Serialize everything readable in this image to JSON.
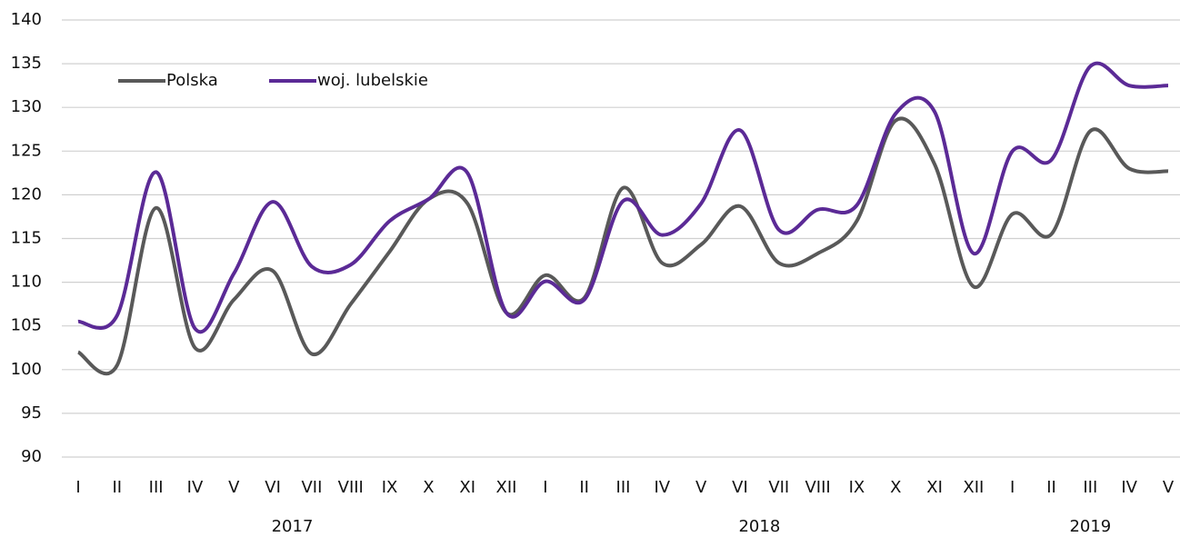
{
  "chart_data": {
    "type": "line",
    "categories": [
      "I",
      "II",
      "III",
      "IV",
      "V",
      "VI",
      "VII",
      "VIII",
      "IX",
      "X",
      "XI",
      "XII",
      "I",
      "II",
      "III",
      "IV",
      "V",
      "VI",
      "VII",
      "VIII",
      "IX",
      "X",
      "XI",
      "XII",
      "I",
      "II",
      "III",
      "IV",
      "V"
    ],
    "year_groups": [
      {
        "label": "2017",
        "count": 12
      },
      {
        "label": "2018",
        "count": 12
      },
      {
        "label": "2019",
        "count": 5
      }
    ],
    "series": [
      {
        "name": "Polska",
        "color": "#595959",
        "values": [
          102,
          100.5,
          118.5,
          102.5,
          108,
          111.3,
          101.8,
          107.5,
          113.5,
          119.5,
          119,
          106.5,
          110.8,
          108.2,
          120.8,
          112.2,
          114.3,
          118.7,
          112.2,
          113.3,
          117,
          128.5,
          123.5,
          109.5,
          117.8,
          115.5,
          127.3,
          123,
          122.7
        ]
      },
      {
        "name": "woj. lubelskie",
        "color": "#5b2a96",
        "values": [
          105.5,
          106.2,
          122.6,
          104.7,
          111,
          119.2,
          111.8,
          112,
          117,
          119.5,
          122.5,
          106.5,
          110.1,
          108,
          119.3,
          115.4,
          119,
          127.4,
          116,
          118.3,
          118.8,
          129.3,
          129.5,
          113.3,
          125,
          124,
          134.7,
          132.5,
          132.5
        ]
      }
    ],
    "ylim": [
      90,
      140
    ],
    "yticks": [
      90,
      95,
      100,
      105,
      110,
      115,
      120,
      125,
      130,
      135,
      140
    ],
    "grid": true,
    "legend": "top-left",
    "smooth": true
  }
}
